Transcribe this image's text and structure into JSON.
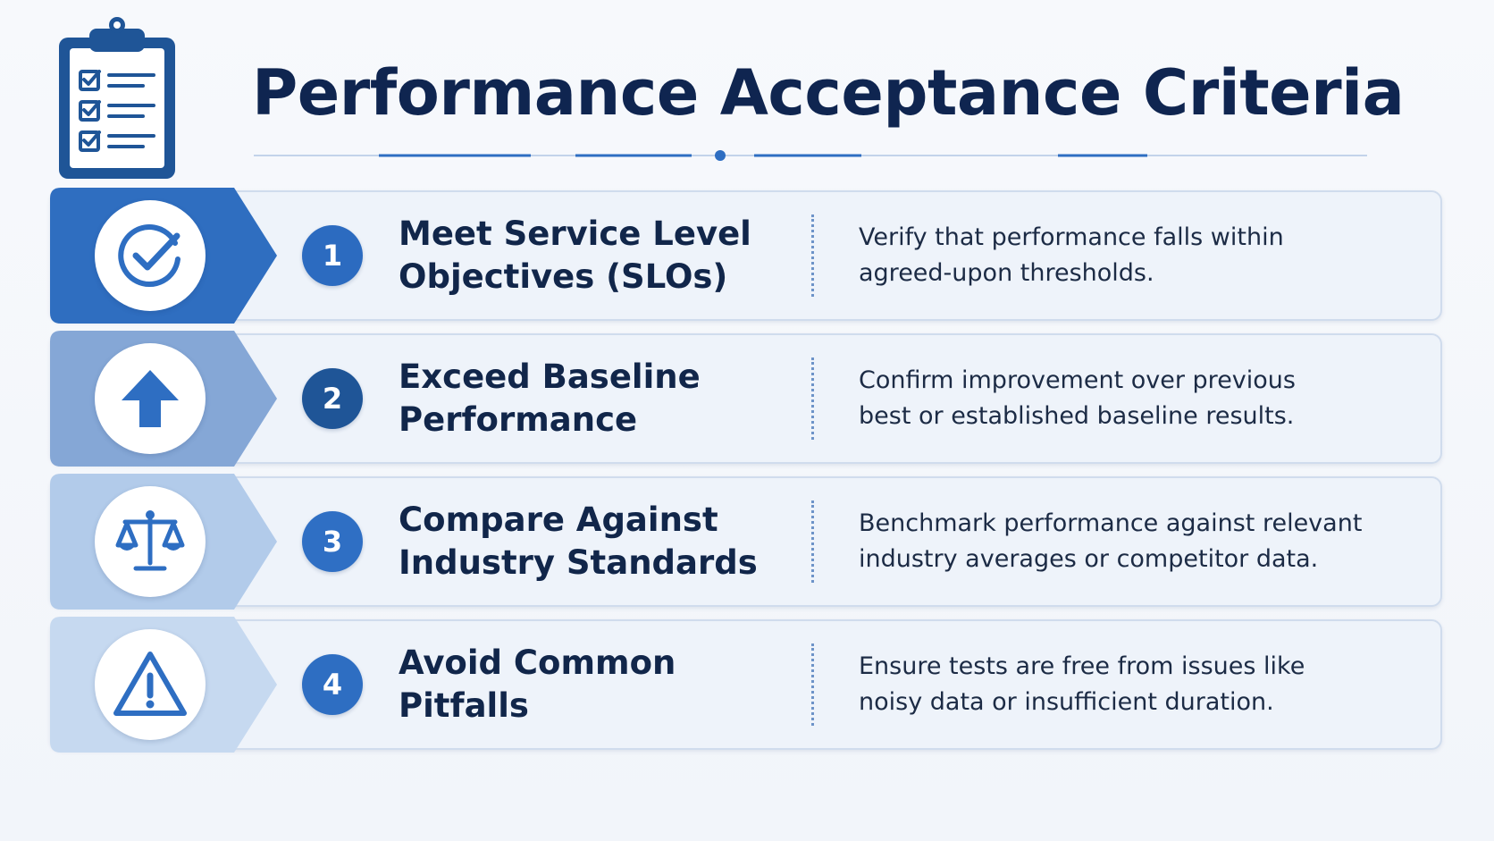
{
  "title": "Performance Acceptance Criteria",
  "header_icon": "clipboard-checklist-icon",
  "colors": {
    "title": "#0f2550",
    "accent": "#2e6ec2",
    "badge_dark": "#1b4f8f"
  },
  "criteria": [
    {
      "number": "1",
      "icon": "checkmark-circle-icon",
      "tab_color": "#2f6ec0",
      "badge_color": "#2c6bc0",
      "title_lines": [
        "Meet Service Level",
        "Objectives (SLOs)"
      ],
      "description_lines": [
        "Verify that performance falls within",
        "agreed-upon thresholds."
      ]
    },
    {
      "number": "2",
      "icon": "up-arrow-icon",
      "tab_color": "#85a7d6",
      "badge_color": "#1f5597",
      "title_lines": [
        "Exceed Baseline",
        "Performance"
      ],
      "description_lines": [
        "Confirm improvement over previous",
        "best or established baseline results."
      ]
    },
    {
      "number": "3",
      "icon": "balance-scale-icon",
      "tab_color": "#b2cbea",
      "badge_color": "#2f6fc4",
      "title_lines": [
        "Compare Against",
        "Industry Standards"
      ],
      "description_lines": [
        "Benchmark performance against relevant",
        "industry averages or competitor data."
      ]
    },
    {
      "number": "4",
      "icon": "warning-triangle-icon",
      "tab_color": "#c6d9f0",
      "badge_color": "#2e6ec2",
      "title_lines": [
        "Avoid Common",
        "Pitfalls"
      ],
      "description_lines": [
        "Ensure tests are free from issues like",
        "noisy data or insufficient duration."
      ]
    }
  ]
}
